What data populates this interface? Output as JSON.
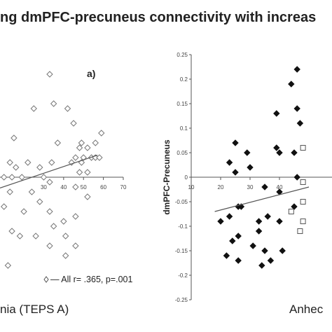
{
  "title": "ng dmPFC-precuneus connectivity with increas",
  "chart_data": [
    {
      "type": "scatter",
      "panel_label": "a)",
      "xlabel": "nia (TEPS A)",
      "ylabel": "",
      "x_ticks": [
        "30",
        "40",
        "50",
        "60",
        "70"
      ],
      "xlim": [
        8,
        70
      ],
      "ylim": [
        -0.25,
        0.25
      ],
      "grid": false,
      "legend_text": "— All r= .365, p=.001",
      "series": [
        {
          "marker": "diamond-open",
          "points": [
            [
              33,
              0.21
            ],
            [
              42,
              0.14
            ],
            [
              35,
              0.15
            ],
            [
              25,
              0.14
            ],
            [
              45,
              0.11
            ],
            [
              59,
              0.09
            ],
            [
              15,
              0.08
            ],
            [
              37,
              0.07
            ],
            [
              49,
              0.07
            ],
            [
              56,
              0.07
            ],
            [
              48,
              0.06
            ],
            [
              52,
              0.06
            ],
            [
              46,
              0.04
            ],
            [
              50,
              0.04
            ],
            [
              54,
              0.04
            ],
            [
              56,
              0.04
            ],
            [
              58,
              0.04
            ],
            [
              13,
              0.03
            ],
            [
              22,
              0.03
            ],
            [
              34,
              0.03
            ],
            [
              44,
              0.03
            ],
            [
              49,
              0.03
            ],
            [
              28,
              0.02
            ],
            [
              16,
              0.02
            ],
            [
              48,
              0.01
            ],
            [
              52,
              0.01
            ],
            [
              10,
              0.0
            ],
            [
              14,
              0.0
            ],
            [
              19,
              0.0
            ],
            [
              30,
              0.0
            ],
            [
              33,
              -0.01
            ],
            [
              46,
              -0.02
            ],
            [
              24,
              -0.03
            ],
            [
              13,
              -0.03
            ],
            [
              52,
              -0.04
            ],
            [
              28,
              -0.05
            ],
            [
              10,
              -0.06
            ],
            [
              20,
              -0.07
            ],
            [
              33,
              -0.07
            ],
            [
              46,
              -0.08
            ],
            [
              40,
              -0.09
            ],
            [
              35,
              -0.1
            ],
            [
              14,
              -0.11
            ],
            [
              18,
              -0.12
            ],
            [
              26,
              -0.12
            ],
            [
              41,
              -0.12
            ],
            [
              33,
              -0.14
            ],
            [
              46,
              -0.14
            ],
            [
              41,
              -0.16
            ],
            [
              12,
              -0.18
            ]
          ]
        }
      ],
      "fit_line": {
        "x": [
          8,
          57
        ],
        "y": [
          -0.022,
          0.045
        ]
      }
    },
    {
      "type": "scatter",
      "xlabel": "Anhec",
      "ylabel": "dmPFC-Precuneus",
      "x_ticks": [
        "10",
        "20",
        "30",
        "40"
      ],
      "y_ticks": [
        "0.25",
        "0.2",
        "0.15",
        "0.1",
        "0.05",
        "0",
        "-0.05",
        "-0.1",
        "-0.15",
        "-0.2",
        "-0.25"
      ],
      "xlim": [
        10,
        50
      ],
      "ylim": [
        -0.25,
        0.25
      ],
      "grid": false,
      "series": [
        {
          "marker": "diamond-filled",
          "points": [
            [
              46,
              0.22
            ],
            [
              44,
              0.19
            ],
            [
              46,
              0.14
            ],
            [
              39,
              0.13
            ],
            [
              47,
              0.11
            ],
            [
              25,
              0.07
            ],
            [
              39,
              0.06
            ],
            [
              29,
              0.05
            ],
            [
              40,
              0.05
            ],
            [
              45,
              0.05
            ],
            [
              23,
              0.03
            ],
            [
              25,
              0.01
            ],
            [
              30,
              0.02
            ],
            [
              46,
              0.0
            ],
            [
              35,
              -0.02
            ],
            [
              40,
              -0.03
            ],
            [
              26,
              -0.06
            ],
            [
              27,
              -0.06
            ],
            [
              45,
              -0.06
            ],
            [
              36,
              -0.08
            ],
            [
              20,
              -0.09
            ],
            [
              23,
              -0.08
            ],
            [
              33,
              -0.09
            ],
            [
              40,
              -0.09
            ],
            [
              33,
              -0.11
            ],
            [
              24,
              -0.13
            ],
            [
              26,
              -0.12
            ],
            [
              31,
              -0.14
            ],
            [
              35,
              -0.15
            ],
            [
              41,
              -0.15
            ],
            [
              22,
              -0.16
            ],
            [
              26,
              -0.17
            ],
            [
              34,
              -0.18
            ],
            [
              37,
              -0.17
            ]
          ]
        },
        {
          "marker": "square-open",
          "points": [
            [
              48,
              0.06
            ],
            [
              48,
              -0.01
            ],
            [
              48,
              -0.05
            ],
            [
              44,
              -0.07
            ],
            [
              48,
              -0.09
            ],
            [
              47,
              -0.11
            ]
          ]
        }
      ],
      "fit_line": {
        "x": [
          18,
          50
        ],
        "y": [
          -0.07,
          -0.02
        ]
      }
    }
  ]
}
